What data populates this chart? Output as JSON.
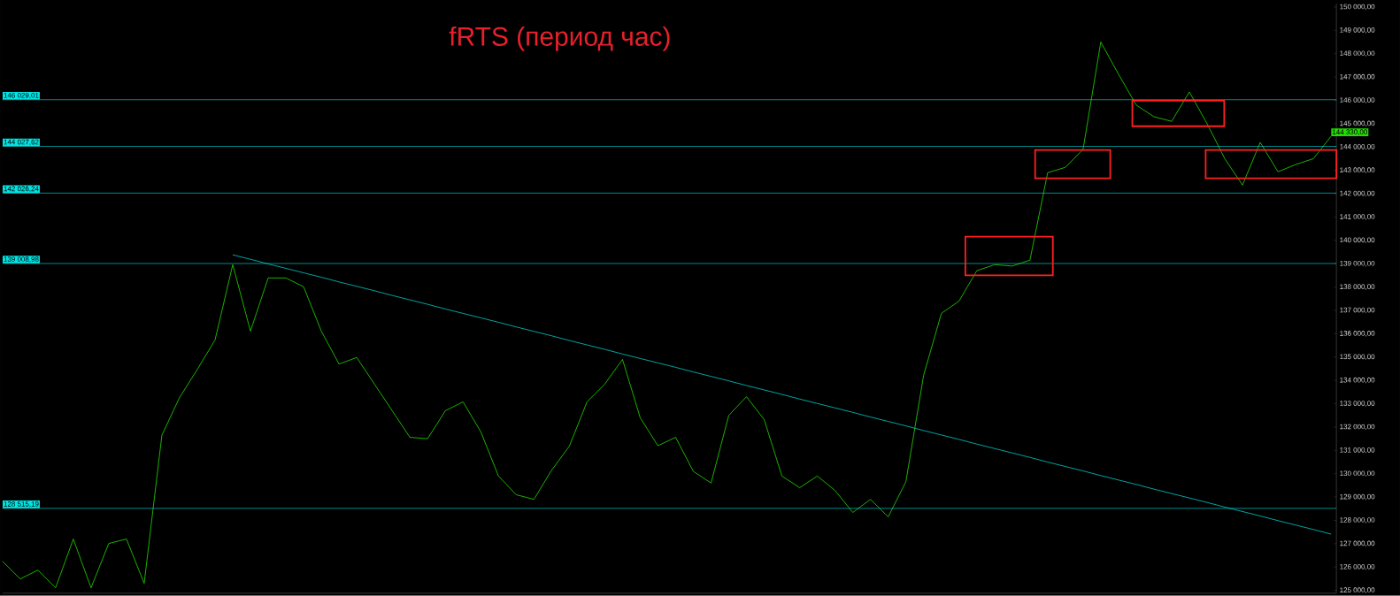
{
  "chart_data": {
    "type": "line",
    "title": "fRTS (период час)",
    "tick_labels": "y",
    "categories": [
      null,
      null,
      null,
      null,
      null,
      null,
      null,
      null,
      null,
      null,
      null,
      null,
      null,
      null,
      null,
      null,
      null,
      null,
      null,
      null,
      null,
      null,
      null,
      null,
      null,
      null,
      null,
      null,
      null,
      null,
      null,
      null,
      null,
      null,
      null,
      null,
      null,
      null,
      null,
      null,
      null,
      null,
      null,
      null,
      null,
      null,
      null,
      null,
      null,
      null,
      null,
      null,
      null,
      null,
      null,
      null,
      null,
      null,
      null,
      null,
      null,
      null,
      null,
      null,
      null,
      null,
      null,
      null,
      null,
      null,
      null,
      null,
      null,
      null,
      null,
      null
    ],
    "ylim": [
      124880,
      150150
    ],
    "yticks": [
      {
        "value": 125000,
        "label": "125 000,00"
      },
      {
        "value": 126000,
        "label": "126 000,00"
      },
      {
        "value": 127000,
        "label": "127 000,00"
      },
      {
        "value": 128000,
        "label": "128 000,00"
      },
      {
        "value": 129000,
        "label": "129 000,00"
      },
      {
        "value": 130000,
        "label": "130 000,00"
      },
      {
        "value": 131000,
        "label": "131 000,00"
      },
      {
        "value": 132000,
        "label": "132 000,00"
      },
      {
        "value": 133000,
        "label": "133 000,00"
      },
      {
        "value": 134000,
        "label": "134 000,00"
      },
      {
        "value": 135000,
        "label": "135 000,00"
      },
      {
        "value": 136000,
        "label": "136 000,00"
      },
      {
        "value": 137000,
        "label": "137 000,00"
      },
      {
        "value": 138000,
        "label": "138 000,00"
      },
      {
        "value": 139000,
        "label": "139 000,00"
      },
      {
        "value": 140000,
        "label": "140 000,00"
      },
      {
        "value": 141000,
        "label": "141 000,00"
      },
      {
        "value": 142000,
        "label": "142 000,00"
      },
      {
        "value": 143000,
        "label": "143 000,00"
      },
      {
        "value": 144000,
        "label": "144 000,00"
      },
      {
        "value": 145000,
        "label": "145 000,00"
      },
      {
        "value": 146000,
        "label": "146 000,00"
      },
      {
        "value": 147000,
        "label": "147 000,00"
      },
      {
        "value": 148000,
        "label": "148 000,00"
      },
      {
        "value": 149000,
        "label": "149 000,00"
      },
      {
        "value": 150000,
        "label": "150 000,00"
      }
    ],
    "series": [
      {
        "color": "#22dd00",
        "values": [
          126250,
          125490,
          125870,
          125110,
          127200,
          125110,
          127010,
          127200,
          125300,
          131650,
          133270,
          134470,
          135730,
          138960,
          136110,
          138390,
          138390,
          138010,
          136110,
          134700,
          134980,
          133840,
          132700,
          131560,
          131500,
          132700,
          133080,
          131800,
          129900,
          129100,
          128900,
          130150,
          131180,
          133080,
          133840,
          134900,
          132400,
          131200,
          131560,
          130100,
          129600,
          132500,
          133300,
          132320,
          129900,
          129400,
          129900,
          129280,
          128340,
          128900,
          128150,
          129660,
          134220,
          136870,
          137400,
          138700,
          138960,
          138900,
          139150,
          142900,
          143130,
          143900,
          148500,
          147120,
          145800,
          145300,
          145100,
          146360,
          145000,
          143500,
          142370,
          144200,
          142940,
          143250,
          143500,
          144460
        ]
      },
      {
        "color": "#00cccc",
        "values": [
          null,
          null,
          null,
          null,
          null,
          null,
          null,
          null,
          null,
          null,
          null,
          null,
          null,
          139380,
          139190,
          138990,
          138800,
          138610,
          138420,
          138220,
          138030,
          137840,
          137640,
          137450,
          137260,
          137060,
          136870,
          136680,
          136490,
          136290,
          136100,
          135910,
          135710,
          135520,
          135330,
          135130,
          134940,
          134750,
          134560,
          134360,
          134170,
          133980,
          133780,
          133590,
          133400,
          133200,
          133010,
          132820,
          132630,
          132430,
          132240,
          132050,
          131850,
          131660,
          131470,
          131270,
          131080,
          130890,
          130700,
          130500,
          130310,
          130120,
          129920,
          129730,
          129540,
          129340,
          129150,
          128960,
          128770,
          128570,
          128380,
          128190,
          127990,
          127800,
          127610,
          127410
        ]
      }
    ],
    "ref_lines": [
      {
        "axis": "y",
        "value": 146029.01,
        "label": "146 029,01",
        "color": "#00e5e5"
      },
      {
        "axis": "y",
        "value": 144027.62,
        "label": "144 027,62",
        "color": "#00e5e5"
      },
      {
        "axis": "y",
        "value": 142026.24,
        "label": "142 026,24",
        "color": "#00e5e5"
      },
      {
        "axis": "y",
        "value": 139008.98,
        "label": "139 008,98",
        "color": "#00e5e5"
      },
      {
        "axis": "y",
        "value": 128515.19,
        "label": "128 515,19",
        "color": "#00e5e5"
      }
    ],
    "annotations": [
      "144 330,00"
    ]
  }
}
